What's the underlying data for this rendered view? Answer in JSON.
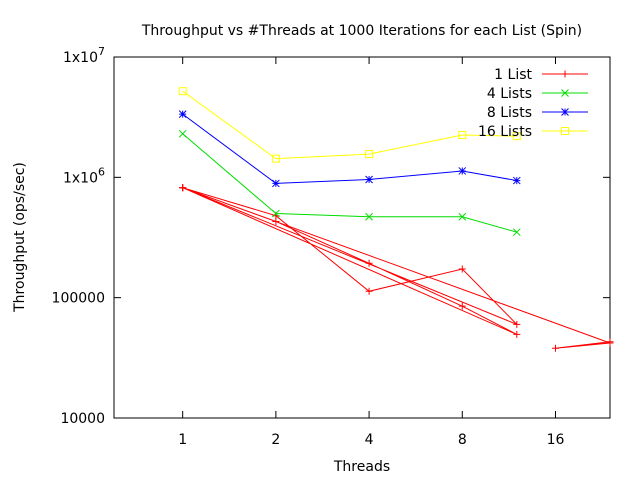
{
  "chart_data": {
    "type": "line",
    "title": "Throughput vs #Threads at 1000 Iterations for each List (Spin)",
    "xlabel": "Threads",
    "ylabel": "Throughput (ops/sec)",
    "xscale": "log2",
    "yscale": "log10",
    "xlim": [
      0.6,
      24
    ],
    "ylim": [
      10000,
      10000000
    ],
    "xticks": [
      {
        "value": 1,
        "label": "1"
      },
      {
        "value": 2,
        "label": "2"
      },
      {
        "value": 4,
        "label": "4"
      },
      {
        "value": 8,
        "label": "8"
      },
      {
        "value": 16,
        "label": "16"
      }
    ],
    "yticks": [
      {
        "value": 10000,
        "label": "10000",
        "sup": ""
      },
      {
        "value": 100000,
        "label": "100000",
        "sup": ""
      },
      {
        "value": 1000000,
        "label": "1x10",
        "sup": "6"
      },
      {
        "value": 10000000,
        "label": "1x10",
        "sup": "7"
      }
    ],
    "grid": false,
    "legend_position": "top-right",
    "series": [
      {
        "name": "1 List",
        "color": "#ff0000",
        "marker": "plus",
        "points": [
          [
            1,
            820000
          ],
          [
            2,
            480000
          ],
          [
            4,
            113000
          ],
          [
            8,
            173000
          ],
          [
            12,
            60000
          ],
          [
            1,
            820000
          ],
          [
            2,
            430000
          ],
          [
            4,
            193000
          ],
          [
            8,
            85000
          ],
          [
            12,
            49500
          ],
          [
            1,
            820000
          ],
          [
            24,
            42000
          ],
          [
            16,
            38000
          ],
          [
            24,
            43000
          ]
        ]
      },
      {
        "name": "4 Lists",
        "color": "#00dd00",
        "marker": "cross",
        "points": [
          [
            1,
            2300000
          ],
          [
            2,
            500000
          ],
          [
            4,
            470000
          ],
          [
            8,
            470000
          ],
          [
            12,
            350000
          ]
        ]
      },
      {
        "name": "8 Lists",
        "color": "#0000ff",
        "marker": "star",
        "points": [
          [
            1,
            3350000
          ],
          [
            2,
            890000
          ],
          [
            4,
            960000
          ],
          [
            8,
            1130000
          ],
          [
            12,
            940000
          ]
        ]
      },
      {
        "name": "16 Lists",
        "color": "#ffff00",
        "marker": "square",
        "points": [
          [
            1,
            5200000
          ],
          [
            2,
            1430000
          ],
          [
            4,
            1560000
          ],
          [
            8,
            2250000
          ],
          [
            12,
            2200000
          ]
        ]
      }
    ]
  }
}
